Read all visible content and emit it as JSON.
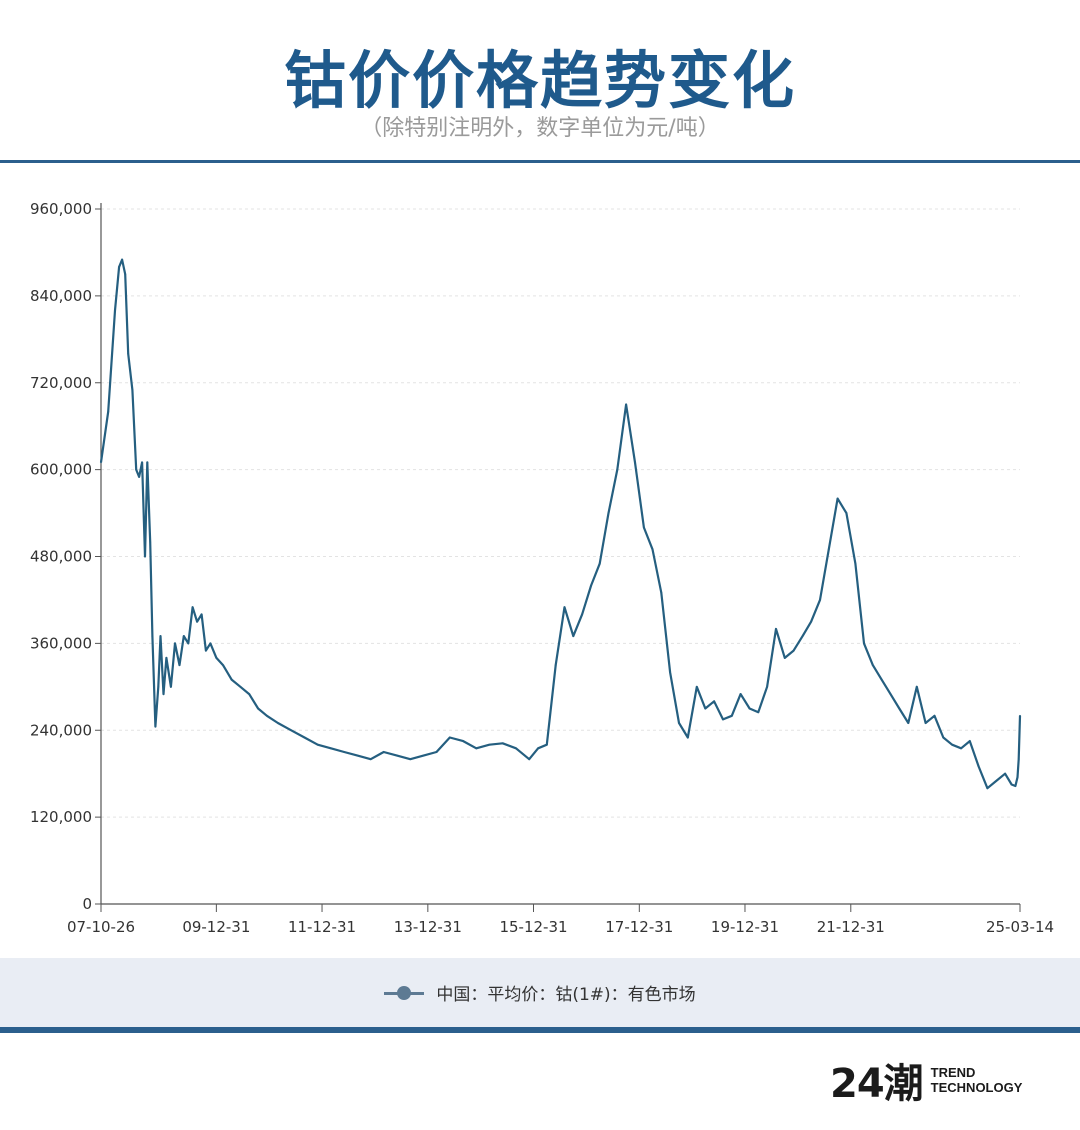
{
  "header": {
    "title": "钴价价格趋势变化",
    "subtitle": "（除特别注明外，数字单位为元/吨）"
  },
  "legend": {
    "label": "中国：平均价：钴(1#)：有色市场",
    "color": "#5d7a93"
  },
  "logo": {
    "mark": "24潮",
    "line1": "TREND",
    "line2": "TECHNOLOGY"
  },
  "colors": {
    "title": "#1f5a8c",
    "rule": "#2b5f8d",
    "series": "#255f80",
    "grid": "#e3e3e3"
  },
  "chart_data": {
    "type": "line",
    "title": "",
    "xlabel": "",
    "ylabel": "",
    "xlim": [
      "2007-10-26",
      "2025-03-14"
    ],
    "ylim": [
      0,
      960000
    ],
    "grid": true,
    "legend_position": "bottom",
    "yticks": [
      0,
      120000,
      240000,
      360000,
      480000,
      600000,
      720000,
      840000,
      960000
    ],
    "ytick_labels": [
      "0",
      "120,000",
      "240,000",
      "360,000",
      "480,000",
      "600,000",
      "720,000",
      "840,000",
      "960,000"
    ],
    "xticks": [
      "2007-10-26",
      "2009-12-31",
      "2011-12-31",
      "2013-12-31",
      "2015-12-31",
      "2017-12-31",
      "2019-12-31",
      "2021-12-31",
      "2025-03-14"
    ],
    "xtick_labels": [
      "07-10-26",
      "09-12-31",
      "11-12-31",
      "13-12-31",
      "15-12-31",
      "17-12-31",
      "19-12-31",
      "21-12-31",
      "25-03-14"
    ],
    "series": [
      {
        "name": "中国：平均价：钴(1#)：有色市场",
        "x": [
          "2007-10-26",
          "2007-12-15",
          "2008-01-31",
          "2008-02-28",
          "2008-03-20",
          "2008-04-10",
          "2008-05-01",
          "2008-05-30",
          "2008-06-25",
          "2008-07-15",
          "2008-08-05",
          "2008-08-25",
          "2008-09-10",
          "2008-09-30",
          "2008-10-15",
          "2008-11-05",
          "2008-11-25",
          "2008-12-10",
          "2008-12-31",
          "2009-01-20",
          "2009-02-20",
          "2009-03-20",
          "2009-04-20",
          "2009-05-20",
          "2009-06-20",
          "2009-07-20",
          "2009-08-20",
          "2009-09-20",
          "2009-10-20",
          "2009-11-20",
          "2009-12-31",
          "2010-02-15",
          "2010-04-15",
          "2010-06-15",
          "2010-08-15",
          "2010-10-15",
          "2010-12-15",
          "2011-03-01",
          "2011-06-01",
          "2011-09-01",
          "2011-12-01",
          "2012-03-01",
          "2012-06-01",
          "2012-09-01",
          "2012-12-01",
          "2013-03-01",
          "2013-06-01",
          "2013-09-01",
          "2013-12-01",
          "2014-03-01",
          "2014-06-01",
          "2014-09-01",
          "2014-12-01",
          "2015-03-01",
          "2015-06-01",
          "2015-09-01",
          "2015-12-01",
          "2016-02-01",
          "2016-04-01",
          "2016-06-01",
          "2016-08-01",
          "2016-10-01",
          "2016-12-01",
          "2017-02-01",
          "2017-04-01",
          "2017-06-01",
          "2017-08-01",
          "2017-10-01",
          "2017-12-01",
          "2018-02-01",
          "2018-04-01",
          "2018-06-01",
          "2018-08-01",
          "2018-10-01",
          "2018-12-01",
          "2019-02-01",
          "2019-04-01",
          "2019-06-01",
          "2019-08-01",
          "2019-10-01",
          "2019-12-01",
          "2020-02-01",
          "2020-04-01",
          "2020-06-01",
          "2020-08-01",
          "2020-10-01",
          "2020-12-01",
          "2021-02-01",
          "2021-04-01",
          "2021-06-01",
          "2021-08-01",
          "2021-10-01",
          "2021-12-01",
          "2022-02-01",
          "2022-04-01",
          "2022-06-01",
          "2022-08-01",
          "2022-10-01",
          "2022-12-01",
          "2023-02-01",
          "2023-04-01",
          "2023-06-01",
          "2023-08-01",
          "2023-10-01",
          "2023-12-01",
          "2024-02-01",
          "2024-04-01",
          "2024-06-01",
          "2024-08-01",
          "2024-10-01",
          "2024-12-01",
          "2025-01-15",
          "2025-02-10",
          "2025-02-25",
          "2025-03-05",
          "2025-03-14"
        ],
        "y": [
          610000,
          680000,
          820000,
          880000,
          890000,
          870000,
          760000,
          710000,
          600000,
          590000,
          610000,
          480000,
          610000,
          500000,
          370000,
          245000,
          300000,
          370000,
          290000,
          340000,
          300000,
          360000,
          330000,
          370000,
          360000,
          410000,
          390000,
          400000,
          350000,
          360000,
          340000,
          330000,
          310000,
          300000,
          290000,
          270000,
          260000,
          250000,
          240000,
          230000,
          220000,
          215000,
          210000,
          205000,
          200000,
          210000,
          205000,
          200000,
          205000,
          210000,
          230000,
          225000,
          215000,
          220000,
          222000,
          215000,
          200000,
          215000,
          220000,
          330000,
          410000,
          370000,
          400000,
          440000,
          470000,
          540000,
          600000,
          690000,
          610000,
          520000,
          490000,
          430000,
          320000,
          250000,
          230000,
          300000,
          270000,
          280000,
          255000,
          260000,
          290000,
          270000,
          265000,
          300000,
          380000,
          340000,
          350000,
          370000,
          390000,
          420000,
          490000,
          560000,
          540000,
          470000,
          360000,
          330000,
          310000,
          290000,
          270000,
          250000,
          300000,
          250000,
          260000,
          230000,
          220000,
          215000,
          225000,
          190000,
          160000,
          170000,
          180000,
          165000,
          163000,
          175000,
          200000,
          260000
        ]
      }
    ]
  }
}
